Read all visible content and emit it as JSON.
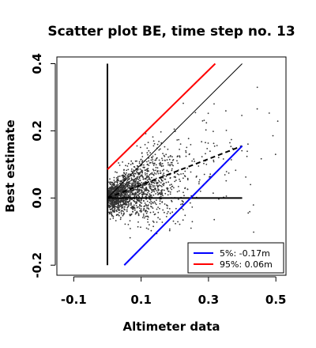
{
  "chart_data": {
    "type": "scatter",
    "title": "Scatter plot BE, time step no. 13",
    "xlabel": "Altimeter data",
    "ylabel": "Best estimate",
    "xlim": [
      -0.15,
      0.53
    ],
    "ylim": [
      -0.23,
      0.42
    ],
    "x_ticks": [
      -0.1,
      0.1,
      0.3,
      0.5
    ],
    "x_tick_labels": [
      "-0.1",
      "0.1",
      "0.3",
      "0.5"
    ],
    "y_ticks": [
      -0.2,
      0.0,
      0.2,
      0.4
    ],
    "y_tick_labels": [
      "-0.2",
      "0.0",
      "0.2",
      "0.4"
    ],
    "grid": false,
    "legend": {
      "position": "bottom-right",
      "entries": [
        {
          "label": "5%: -0.17m",
          "color": "#0000ff"
        },
        {
          "label": "95%:  0.06m",
          "color": "#ff0000"
        }
      ]
    },
    "lines": [
      {
        "style": "solid",
        "color": "#000000",
        "width": 2,
        "x": [
          0.0,
          0.0
        ],
        "y": [
          -0.2,
          0.4
        ]
      },
      {
        "style": "solid",
        "color": "#000000",
        "width": 2,
        "x": [
          0.0,
          0.4
        ],
        "y": [
          0.0,
          0.0
        ]
      },
      {
        "style": "solid",
        "color": "#000000",
        "width": 1,
        "x": [
          0.0,
          0.4
        ],
        "y": [
          0.0,
          0.4
        ]
      },
      {
        "style": "dashed",
        "color": "#000000",
        "width": 2,
        "x": [
          0.0,
          0.4
        ],
        "y": [
          0.0,
          0.155
        ]
      },
      {
        "style": "solid",
        "color": "#ff0000",
        "width": 2,
        "x": [
          0.0,
          0.32
        ],
        "y": [
          0.085,
          0.4
        ]
      },
      {
        "style": "solid",
        "color": "#0000ff",
        "width": 2,
        "x": [
          0.05,
          0.4
        ],
        "y": [
          -0.2,
          0.155
        ]
      }
    ],
    "point_color": "#333333",
    "point_count": 1800
  }
}
